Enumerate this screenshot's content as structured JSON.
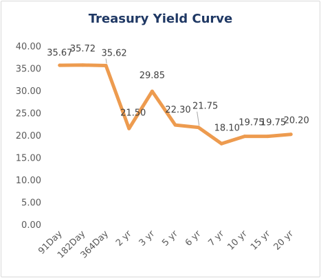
{
  "chart_data": {
    "type": "line",
    "title": "Treasury Yield Curve",
    "xlabel": "",
    "ylabel": "",
    "categories": [
      "91Day",
      "182Day",
      "364Day",
      "2 yr",
      "3 yr",
      "5 yr",
      "6 yr",
      "7 yr",
      "10 yr",
      "15 yr",
      "20 yr"
    ],
    "values": [
      35.67,
      35.72,
      35.62,
      21.5,
      29.85,
      22.3,
      21.75,
      18.1,
      19.75,
      19.75,
      20.2
    ],
    "data_labels": [
      "35.67",
      "35.72",
      "35.62",
      "21.50",
      "29.85",
      "22.30",
      "21.75",
      "18.10",
      "19.75",
      "19.75",
      "20.20"
    ],
    "y_ticks": [
      "0.00",
      "5.00",
      "10.00",
      "15.00",
      "20.00",
      "25.00",
      "30.00",
      "35.00",
      "40.00"
    ],
    "ylim": [
      0,
      40
    ],
    "grid": false,
    "legend": "none",
    "line_color": "#ed9b4f"
  }
}
